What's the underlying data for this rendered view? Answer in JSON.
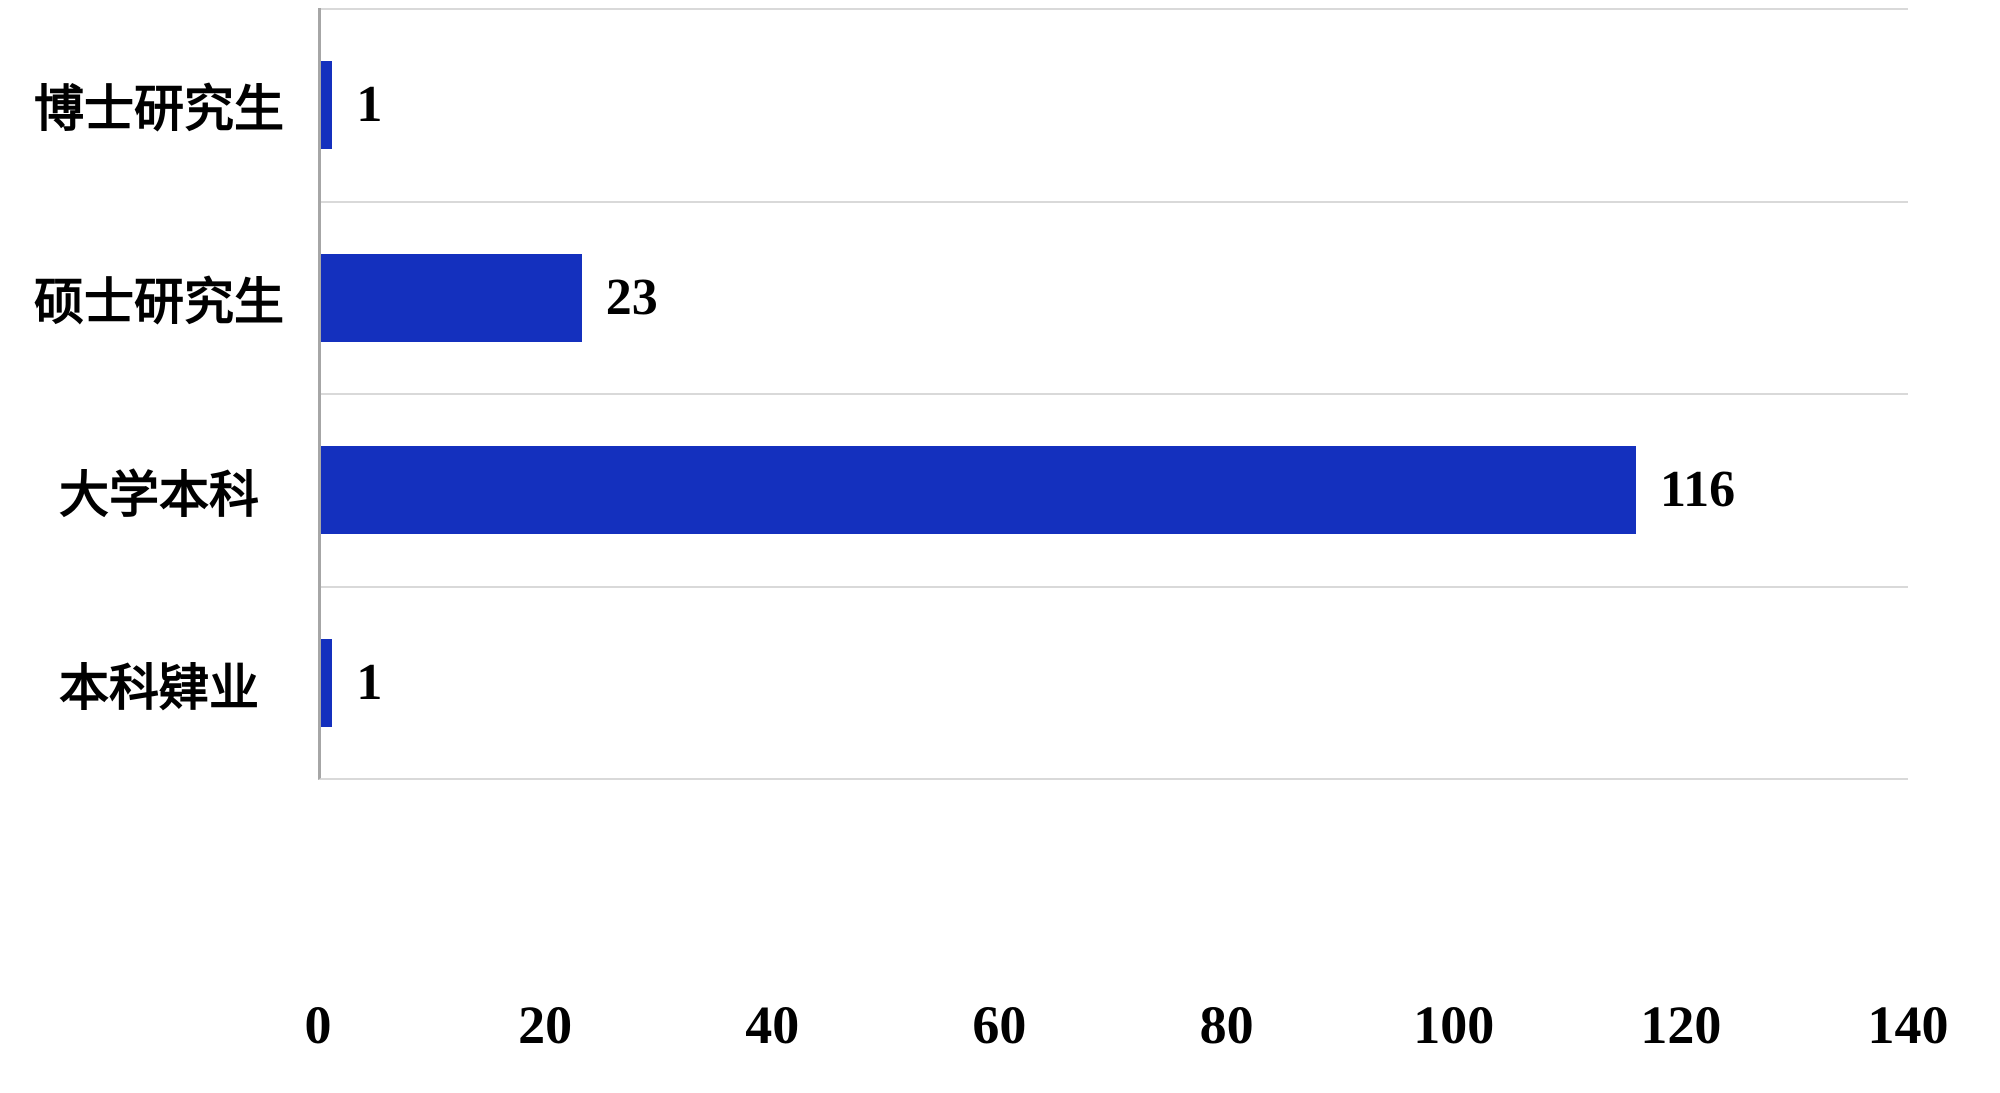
{
  "chart_data": {
    "type": "bar",
    "orientation": "horizontal",
    "title": "",
    "xlabel": "",
    "ylabel": "",
    "categories": [
      "博士研究生",
      "硕士研究生",
      "大学本科",
      "本科肄业"
    ],
    "values": [
      1,
      23,
      116,
      1
    ],
    "data_labels": [
      "1",
      "23",
      "116",
      "1"
    ],
    "xlim": [
      0,
      140
    ],
    "x_ticks": [
      "0",
      "20",
      "40",
      "60",
      "80",
      "100",
      "120",
      "140"
    ],
    "bar_color": "#1430BE",
    "text_color": "#000000",
    "axis_line_color": "#a6a6a6",
    "gridline_color": "#d9d9d9",
    "legend": "none",
    "grid": "category-boundary-lines"
  }
}
